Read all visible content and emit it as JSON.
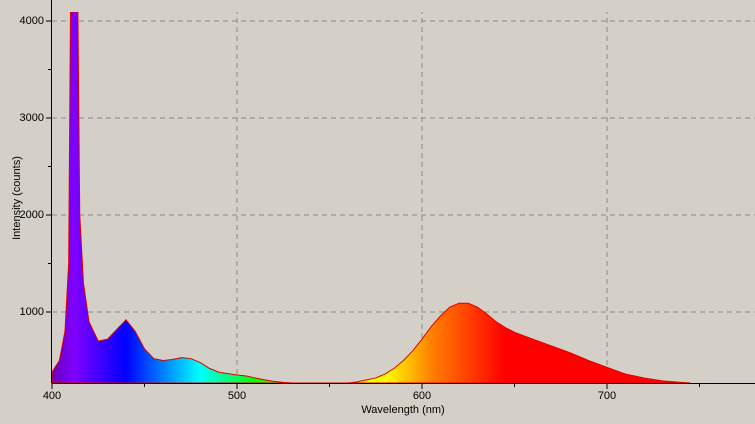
{
  "chart_data": {
    "type": "area",
    "x_label": "Wavelength (nm)",
    "y_label": "Intensity (counts)",
    "x": [
      400,
      404,
      407,
      409,
      410,
      411,
      413,
      414,
      415,
      417,
      420,
      425,
      430,
      435,
      440,
      445,
      450,
      455,
      460,
      465,
      470,
      475,
      480,
      485,
      490,
      495,
      500,
      505,
      510,
      515,
      520,
      525,
      530,
      560,
      565,
      570,
      575,
      580,
      585,
      590,
      595,
      600,
      605,
      610,
      615,
      620,
      625,
      630,
      635,
      640,
      645,
      650,
      660,
      670,
      680,
      690,
      700,
      710,
      720,
      730,
      740,
      745
    ],
    "values": [
      380,
      500,
      800,
      1500,
      4093,
      4093,
      4093,
      4093,
      2000,
      1300,
      900,
      700,
      720,
      820,
      920,
      800,
      620,
      520,
      500,
      510,
      530,
      520,
      480,
      420,
      380,
      365,
      350,
      340,
      320,
      300,
      285,
      275,
      268,
      268,
      280,
      300,
      320,
      360,
      420,
      500,
      600,
      720,
      850,
      960,
      1050,
      1090,
      1090,
      1050,
      980,
      900,
      840,
      790,
      720,
      650,
      580,
      500,
      430,
      360,
      320,
      290,
      275,
      268
    ],
    "xlim": [
      400,
      780
    ],
    "ylim": [
      268,
      4093
    ],
    "xticks": [
      400,
      500,
      600,
      700
    ],
    "yticks": [
      1000,
      2000,
      3000,
      4000
    ],
    "xminorticks": [
      450,
      550,
      650,
      750
    ],
    "yminorticks": [
      1500,
      2500,
      3500
    ],
    "grid": true,
    "outline_color": "#e00000",
    "spectrum_colors": [
      {
        "wavelength": 400,
        "color": "#6a00b8"
      },
      {
        "wavelength": 412,
        "color": "#8000ff"
      },
      {
        "wavelength": 440,
        "color": "#0000ff"
      },
      {
        "wavelength": 480,
        "color": "#00ffff"
      },
      {
        "wavelength": 510,
        "color": "#00ff00"
      },
      {
        "wavelength": 580,
        "color": "#ffff00"
      },
      {
        "wavelength": 605,
        "color": "#ff8000"
      },
      {
        "wavelength": 645,
        "color": "#ff0000"
      },
      {
        "wavelength": 780,
        "color": "#ff0000"
      }
    ]
  }
}
